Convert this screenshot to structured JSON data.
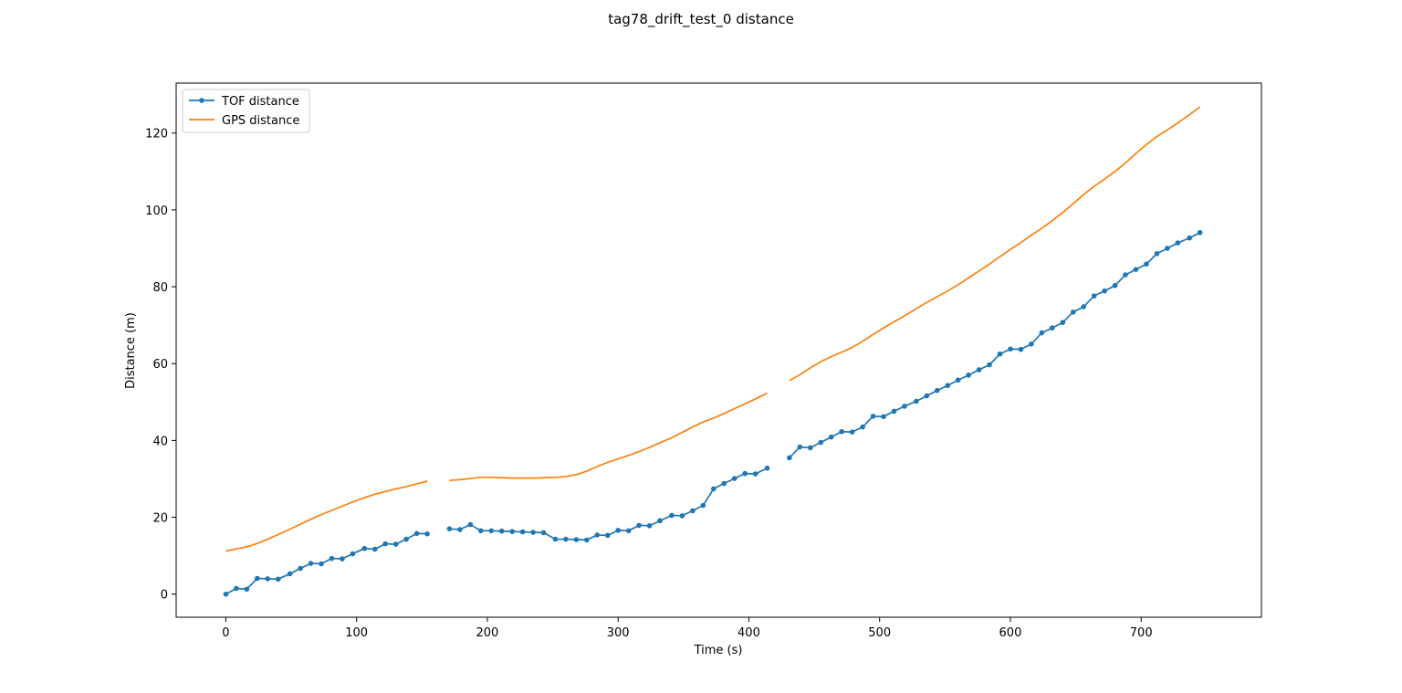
{
  "chart_data": {
    "type": "line",
    "title": "tag78_drift_test_0 distance",
    "xlabel": "Time (s)",
    "ylabel": "Distance (m)",
    "xlim": [
      -38,
      792
    ],
    "ylim": [
      -6,
      133
    ],
    "xticks": [
      0,
      100,
      200,
      300,
      400,
      500,
      600,
      700
    ],
    "yticks": [
      0,
      20,
      40,
      60,
      80,
      100,
      120
    ],
    "grid": false,
    "legend_position": "top-left",
    "series": [
      {
        "name": "TOF distance",
        "color": "#1f77b4",
        "marker": "dot",
        "segments": [
          [
            [
              0,
              0
            ],
            [
              8,
              1.5
            ],
            [
              16,
              1.3
            ],
            [
              24,
              4.1
            ],
            [
              32,
              4.0
            ],
            [
              40,
              3.9
            ],
            [
              49,
              5.3
            ],
            [
              57,
              6.7
            ],
            [
              65,
              8.0
            ],
            [
              73,
              7.9
            ],
            [
              81,
              9.3
            ],
            [
              89,
              9.2
            ],
            [
              97,
              10.5
            ],
            [
              106,
              11.9
            ],
            [
              114,
              11.7
            ],
            [
              122,
              13.1
            ],
            [
              130,
              13.0
            ],
            [
              138,
              14.3
            ],
            [
              146,
              15.8
            ],
            [
              154,
              15.7
            ]
          ],
          [
            [
              171,
              17.0
            ],
            [
              179,
              16.8
            ],
            [
              187,
              18.1
            ],
            [
              195,
              16.5
            ],
            [
              203,
              16.5
            ],
            [
              211,
              16.4
            ],
            [
              219,
              16.3
            ],
            [
              227,
              16.2
            ],
            [
              235,
              16.1
            ],
            [
              243,
              16.0
            ],
            [
              252,
              14.3
            ],
            [
              260,
              14.3
            ],
            [
              268,
              14.2
            ],
            [
              276,
              14.1
            ],
            [
              284,
              15.4
            ],
            [
              292,
              15.3
            ],
            [
              300,
              16.6
            ],
            [
              308,
              16.5
            ],
            [
              316,
              17.9
            ],
            [
              324,
              17.8
            ],
            [
              332,
              19.1
            ],
            [
              341,
              20.5
            ],
            [
              349,
              20.4
            ],
            [
              357,
              21.7
            ],
            [
              365,
              23.1
            ],
            [
              373,
              27.4
            ],
            [
              381,
              28.8
            ],
            [
              389,
              30.1
            ],
            [
              397,
              31.4
            ],
            [
              405,
              31.3
            ],
            [
              414,
              32.8
            ]
          ],
          [
            [
              431,
              35.5
            ],
            [
              439,
              38.3
            ],
            [
              447,
              38.1
            ],
            [
              455,
              39.5
            ],
            [
              463,
              40.9
            ],
            [
              471,
              42.3
            ],
            [
              479,
              42.2
            ],
            [
              487,
              43.5
            ],
            [
              495,
              46.3
            ],
            [
              503,
              46.2
            ],
            [
              511,
              47.6
            ],
            [
              519,
              48.9
            ],
            [
              528,
              50.2
            ],
            [
              536,
              51.6
            ],
            [
              544,
              53.0
            ],
            [
              552,
              54.3
            ],
            [
              560,
              55.7
            ],
            [
              568,
              57.0
            ],
            [
              576,
              58.4
            ],
            [
              584,
              59.7
            ],
            [
              592,
              62.5
            ],
            [
              600,
              63.8
            ],
            [
              608,
              63.7
            ],
            [
              616,
              65.1
            ],
            [
              624,
              68.0
            ],
            [
              632,
              69.3
            ],
            [
              640,
              70.7
            ],
            [
              648,
              73.4
            ],
            [
              656,
              74.8
            ],
            [
              664,
              77.6
            ],
            [
              672,
              78.9
            ],
            [
              680,
              80.3
            ],
            [
              688,
              83.1
            ],
            [
              696,
              84.5
            ],
            [
              704,
              85.9
            ],
            [
              712,
              88.6
            ],
            [
              720,
              90.0
            ],
            [
              728,
              91.4
            ],
            [
              737,
              92.7
            ],
            [
              745,
              94.1
            ]
          ]
        ]
      },
      {
        "name": "GPS distance",
        "color": "#ff7f0e",
        "marker": "none",
        "segments": [
          [
            [
              0,
              11.2
            ],
            [
              8,
              11.8
            ],
            [
              16,
              12.3
            ],
            [
              24,
              13.2
            ],
            [
              32,
              14.3
            ],
            [
              40,
              15.5
            ],
            [
              49,
              16.9
            ],
            [
              57,
              18.2
            ],
            [
              65,
              19.5
            ],
            [
              73,
              20.7
            ],
            [
              81,
              21.8
            ],
            [
              89,
              22.9
            ],
            [
              97,
              24.0
            ],
            [
              106,
              25.1
            ],
            [
              114,
              26.0
            ],
            [
              122,
              26.7
            ],
            [
              130,
              27.4
            ],
            [
              138,
              28.0
            ],
            [
              146,
              28.7
            ],
            [
              154,
              29.4
            ]
          ],
          [
            [
              171,
              29.6
            ],
            [
              179,
              29.8
            ],
            [
              187,
              30.1
            ],
            [
              195,
              30.4
            ],
            [
              203,
              30.4
            ],
            [
              211,
              30.3
            ],
            [
              219,
              30.2
            ],
            [
              227,
              30.2
            ],
            [
              235,
              30.2
            ],
            [
              243,
              30.3
            ],
            [
              252,
              30.4
            ],
            [
              260,
              30.6
            ],
            [
              268,
              31.1
            ],
            [
              276,
              32.0
            ],
            [
              284,
              33.2
            ],
            [
              292,
              34.3
            ],
            [
              300,
              35.2
            ],
            [
              308,
              36.1
            ],
            [
              316,
              37.1
            ],
            [
              324,
              38.2
            ],
            [
              332,
              39.4
            ],
            [
              341,
              40.7
            ],
            [
              349,
              42.1
            ],
            [
              357,
              43.5
            ],
            [
              365,
              44.8
            ],
            [
              373,
              45.8
            ],
            [
              381,
              47.0
            ],
            [
              389,
              48.3
            ],
            [
              397,
              49.5
            ],
            [
              405,
              50.8
            ],
            [
              414,
              52.3
            ]
          ],
          [
            [
              431,
              55.6
            ],
            [
              439,
              57.1
            ],
            [
              447,
              58.9
            ],
            [
              455,
              60.5
            ],
            [
              463,
              61.8
            ],
            [
              471,
              63.0
            ],
            [
              479,
              64.2
            ],
            [
              487,
              65.8
            ],
            [
              495,
              67.6
            ],
            [
              503,
              69.3
            ],
            [
              511,
              70.9
            ],
            [
              519,
              72.4
            ],
            [
              528,
              74.3
            ],
            [
              536,
              75.9
            ],
            [
              544,
              77.4
            ],
            [
              552,
              78.9
            ],
            [
              560,
              80.5
            ],
            [
              568,
              82.3
            ],
            [
              576,
              84.1
            ],
            [
              584,
              85.9
            ],
            [
              592,
              87.8
            ],
            [
              600,
              89.7
            ],
            [
              608,
              91.5
            ],
            [
              616,
              93.4
            ],
            [
              624,
              95.2
            ],
            [
              632,
              97.2
            ],
            [
              640,
              99.3
            ],
            [
              648,
              101.6
            ],
            [
              656,
              104.0
            ],
            [
              664,
              106.1
            ],
            [
              672,
              108.0
            ],
            [
              680,
              110.0
            ],
            [
              688,
              112.2
            ],
            [
              696,
              114.7
            ],
            [
              704,
              117.0
            ],
            [
              712,
              119.1
            ],
            [
              720,
              120.8
            ],
            [
              728,
              122.6
            ],
            [
              737,
              124.8
            ],
            [
              745,
              126.8
            ]
          ]
        ]
      }
    ]
  }
}
